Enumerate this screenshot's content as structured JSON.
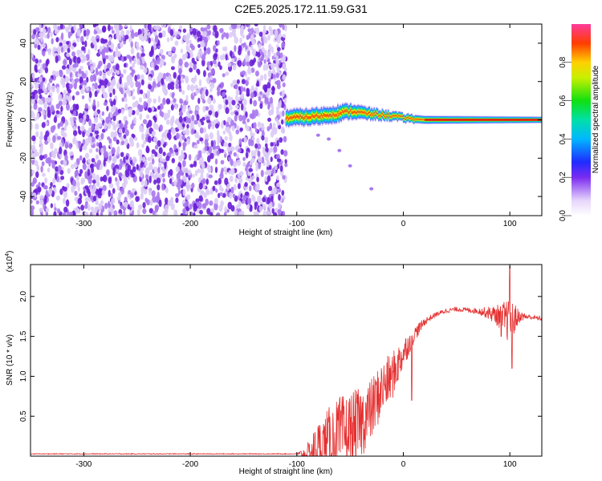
{
  "title": "C2E5.2025.172.11.59.G31",
  "colors": {
    "snr_line": "#e53030",
    "spec_purple_light": "#d9c4f4",
    "spec_purple_dark": "#6a1fd8",
    "spec_line_red": "#e01010",
    "frame": "#000000"
  },
  "chart_data": [
    {
      "type": "heatmap",
      "xlabel": "Height of straight line (km)",
      "ylabel": "Frequency (Hz)",
      "xlim": [
        -350,
        130
      ],
      "ylim": [
        -50,
        50
      ],
      "xticks": [
        -300,
        -200,
        -100,
        0,
        100
      ],
      "xtick_labels": [
        "-300",
        "-200",
        "-100",
        "0",
        "100"
      ],
      "yticks": [
        -40,
        -20,
        0,
        20,
        40
      ],
      "ytick_labels": [
        "-40",
        "-20",
        "0",
        "20",
        "40"
      ],
      "colorbar": {
        "label": "Normalized spectral amplitude",
        "range": [
          0,
          1
        ],
        "ticks": [
          0.0,
          0.2,
          0.4,
          0.6,
          0.8
        ],
        "tick_labels": [
          "0.0",
          "0.2",
          "0.4",
          "0.6",
          "0.8"
        ],
        "colormap": "rainbow"
      },
      "features": {
        "noise_region_x": [
          -350,
          -110
        ],
        "noise_frequency_range": [
          -50,
          50
        ],
        "signal_start_x": -110,
        "signal_band_center_hz": [
          [
            -110,
            1
          ],
          [
            -90,
            1.5
          ],
          [
            -70,
            2.5
          ],
          [
            -50,
            4.5
          ],
          [
            -30,
            3
          ],
          [
            -10,
            2
          ],
          [
            0,
            1
          ],
          [
            20,
            0
          ],
          [
            130,
            0
          ]
        ],
        "signal_band_halfwidth_hz": [
          [
            -110,
            4
          ],
          [
            -60,
            4
          ],
          [
            -20,
            2.5
          ],
          [
            0,
            2
          ],
          [
            130,
            1.5
          ]
        ],
        "low_tail_points": [
          [
            -80,
            -8
          ],
          [
            -70,
            -10
          ],
          [
            -60,
            -16
          ],
          [
            -50,
            -24
          ],
          [
            -30,
            -36
          ]
        ]
      }
    },
    {
      "type": "line",
      "xlabel": "Height of straight line (km)",
      "ylabel": "SNR (10 * v/v)",
      "y_multiplier_label": "(x10",
      "y_multiplier_exp": "4",
      "xlim": [
        -350,
        130
      ],
      "ylim": [
        0,
        2.4
      ],
      "xticks": [
        -300,
        -200,
        -100,
        0,
        100
      ],
      "xtick_labels": [
        "-300",
        "-200",
        "-100",
        "0",
        "100"
      ],
      "yticks": [
        0.5,
        1.0,
        1.5,
        2.0
      ],
      "ytick_labels": [
        "0.5",
        "1.0",
        "1.5",
        "2.0"
      ],
      "series": [
        {
          "envelope_x": [
            -350,
            -100,
            -90,
            -80,
            -70,
            -60,
            -50,
            -40,
            -30,
            -20,
            -10,
            0,
            10,
            20,
            30,
            40,
            50,
            60,
            70,
            80,
            90,
            100,
            110,
            120,
            130
          ],
          "envelope_y": [
            0.03,
            0.03,
            0.05,
            0.2,
            0.3,
            0.4,
            0.45,
            0.55,
            0.7,
            0.95,
            1.1,
            1.35,
            1.55,
            1.7,
            1.78,
            1.83,
            1.85,
            1.84,
            1.83,
            1.82,
            1.8,
            1.78,
            1.77,
            1.75,
            1.73
          ],
          "noise_amplitude": [
            0.005,
            0.005,
            0.15,
            0.35,
            0.45,
            0.5,
            0.5,
            0.45,
            0.4,
            0.35,
            0.3,
            0.2,
            0.1,
            0.05,
            0.03,
            0.03,
            0.03,
            0.03,
            0.04,
            0.08,
            0.15,
            0.3,
            0.06,
            0.03,
            0.03
          ],
          "peaks": [
            [
              100,
              2.38
            ],
            [
              102,
              1.1
            ],
            [
              92,
              1.5
            ],
            [
              8,
              0.7
            ]
          ]
        }
      ]
    }
  ]
}
